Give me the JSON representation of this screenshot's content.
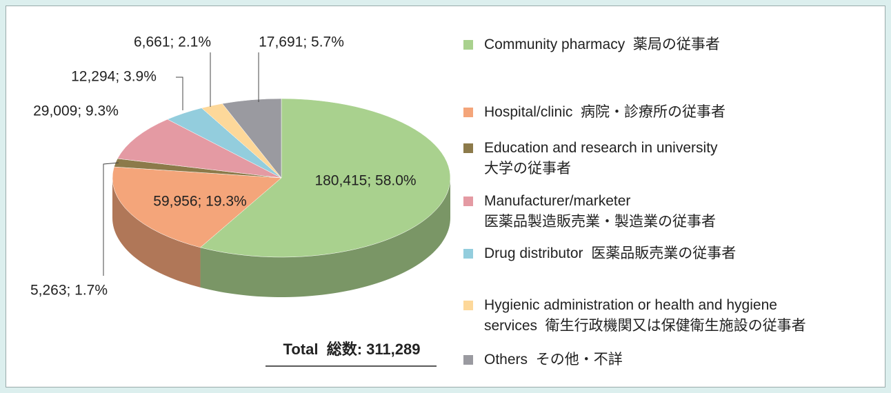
{
  "chart_data": {
    "type": "pie",
    "categories": [
      "Community pharmacy  薬局の従事者",
      "Hospital/clinic  病院・診療所の従事者",
      "Education and research in university\n大学の従事者",
      "Manufacturer/marketer\n医薬品製造販売業・製造業の従事者",
      "Drug distributor  医薬品販売業の従事者",
      "Hygienic administration or health and hygiene\nservices  衛生行政機関又は保健衛生施設の従事者",
      "Others  その他・不詳"
    ],
    "values": [
      180415,
      59956,
      5263,
      29009,
      12294,
      6661,
      17691
    ],
    "value_labels": [
      "180,415; 58.0%",
      "59,956; 19.3%",
      "5,263; 1.7%",
      "29,009; 9.3%",
      "12,294; 3.9%",
      "6,661; 2.1%",
      "17,691; 5.7%"
    ],
    "colors": [
      "#a9d18e",
      "#f4a57a",
      "#8c7a4a",
      "#e49aa3",
      "#93cddd",
      "#fdd89a",
      "#9a9aa0"
    ],
    "total": "Total  総数: 311,289"
  }
}
